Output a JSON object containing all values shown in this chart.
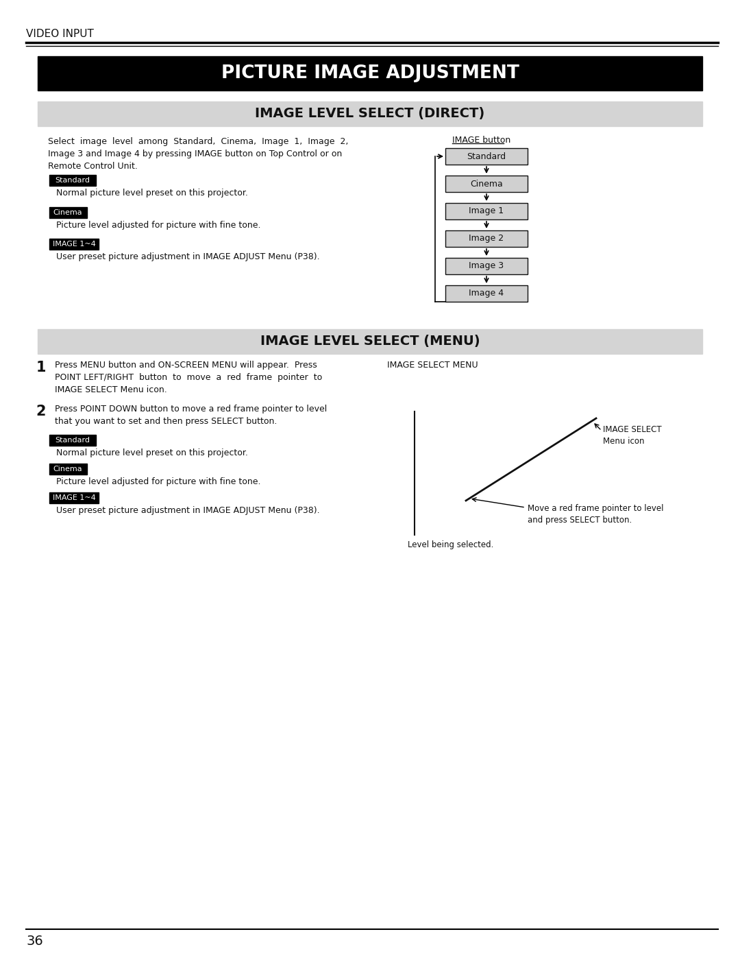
{
  "page_title": "VIDEO INPUT",
  "main_title": "PICTURE IMAGE ADJUSTMENT",
  "section1_title": "IMAGE LEVEL SELECT (DIRECT)",
  "section2_title": "IMAGE LEVEL SELECT (MENU)",
  "page_number": "36",
  "bg_color": "#ffffff",
  "section_bg": "#d4d4d4",
  "main_title_bg": "#000000",
  "main_title_color": "#ffffff",
  "label_bg": "#000000",
  "label_color": "#ffffff",
  "box_bg": "#d0d0d0",
  "box_border": "#111111",
  "intro_text": "Select  image  level  among  Standard,  Cinema,  Image  1,  Image  2,\nImage 3 and Image 4 by pressing IMAGE button on Top Control or on\nRemote Control Unit.",
  "image_button_label": "IMAGE button",
  "flow_boxes": [
    "Standard",
    "Cinema",
    "Image 1",
    "Image 2",
    "Image 3",
    "Image 4"
  ],
  "direct_labels": [
    "Standard",
    "Cinema",
    "IMAGE 1~4"
  ],
  "direct_descriptions": [
    "Normal picture level preset on this projector.",
    "Picture level adjusted for picture with fine tone.",
    "User preset picture adjustment in IMAGE ADJUST Menu (P38)."
  ],
  "menu_step1": "Press MENU button and ON-SCREEN MENU will appear.  Press\nPOINT LEFT/RIGHT  button  to  move  a  red  frame  pointer  to\nIMAGE SELECT Menu icon.",
  "menu_step2": "Press POINT DOWN button to move a red frame pointer to level\nthat you want to set and then press SELECT button.",
  "menu_labels": [
    "Standard",
    "Cinema",
    "IMAGE 1~4"
  ],
  "menu_descriptions": [
    "Normal picture level preset on this projector.",
    "Picture level adjusted for picture with fine tone.",
    "User preset picture adjustment in IMAGE ADJUST Menu (P38)."
  ],
  "image_select_menu_label": "IMAGE SELECT MENU",
  "image_select_icon_label": "IMAGE SELECT\nMenu icon",
  "level_selected_label": "Level being selected.",
  "move_pointer_label": "Move a red frame pointer to level\nand press SELECT button."
}
